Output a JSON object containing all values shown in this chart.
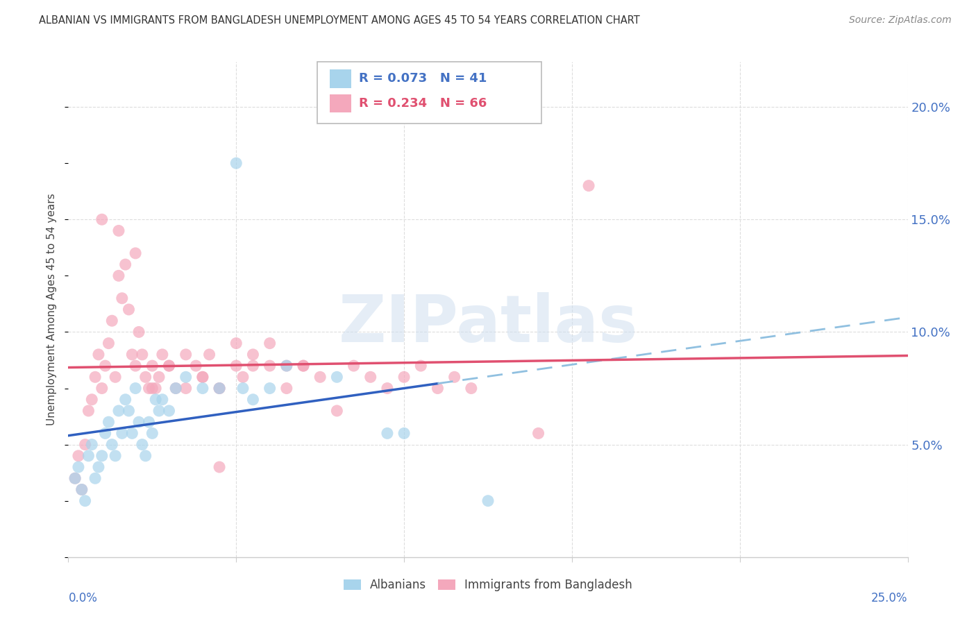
{
  "title": "ALBANIAN VS IMMIGRANTS FROM BANGLADESH UNEMPLOYMENT AMONG AGES 45 TO 54 YEARS CORRELATION CHART",
  "source": "Source: ZipAtlas.com",
  "ylabel": "Unemployment Among Ages 45 to 54 years",
  "xlim": [
    0.0,
    25.0
  ],
  "ylim": [
    0.0,
    22.0
  ],
  "legend1_R": "R = 0.073",
  "legend1_N": "N = 41",
  "legend2_R": "R = 0.234",
  "legend2_N": "N = 66",
  "legend_label1": "Albanians",
  "legend_label2": "Immigrants from Bangladesh",
  "color_albanian": "#a8d4ec",
  "color_bangladesh": "#f4a8bc",
  "watermark_text": "ZIPatlas",
  "alb_line_color": "#3060c0",
  "bang_line_color": "#e05070",
  "alb_dash_color": "#90c0e0",
  "albanian_x": [
    0.2,
    0.3,
    0.4,
    0.5,
    0.6,
    0.7,
    0.8,
    0.9,
    1.0,
    1.1,
    1.2,
    1.3,
    1.4,
    1.5,
    1.6,
    1.7,
    1.8,
    1.9,
    2.0,
    2.1,
    2.2,
    2.3,
    2.4,
    2.5,
    2.6,
    2.7,
    2.8,
    3.0,
    3.2,
    3.5,
    4.0,
    4.5,
    5.0,
    5.2,
    5.5,
    6.0,
    6.5,
    8.0,
    9.5,
    10.0,
    12.5
  ],
  "albanian_y": [
    3.5,
    4.0,
    3.0,
    2.5,
    4.5,
    5.0,
    3.5,
    4.0,
    4.5,
    5.5,
    6.0,
    5.0,
    4.5,
    6.5,
    5.5,
    7.0,
    6.5,
    5.5,
    7.5,
    6.0,
    5.0,
    4.5,
    6.0,
    5.5,
    7.0,
    6.5,
    7.0,
    6.5,
    7.5,
    8.0,
    7.5,
    7.5,
    17.5,
    7.5,
    7.0,
    7.5,
    8.5,
    8.0,
    5.5,
    5.5,
    2.5
  ],
  "bangladesh_x": [
    0.2,
    0.3,
    0.4,
    0.5,
    0.6,
    0.7,
    0.8,
    0.9,
    1.0,
    1.1,
    1.2,
    1.3,
    1.4,
    1.5,
    1.6,
    1.7,
    1.8,
    1.9,
    2.0,
    2.1,
    2.2,
    2.3,
    2.4,
    2.5,
    2.6,
    2.7,
    2.8,
    3.0,
    3.2,
    3.5,
    3.8,
    4.0,
    4.2,
    4.5,
    5.0,
    5.2,
    5.5,
    6.0,
    6.5,
    7.0,
    7.5,
    8.0,
    8.5,
    9.0,
    9.5,
    10.0,
    10.5,
    11.0,
    11.5,
    12.0,
    14.0,
    1.0,
    1.5,
    2.0,
    2.5,
    3.0,
    3.5,
    4.0,
    4.5,
    5.0,
    5.5,
    6.0,
    6.5,
    7.0,
    15.5,
    4.5
  ],
  "bangladesh_y": [
    3.5,
    4.5,
    3.0,
    5.0,
    6.5,
    7.0,
    8.0,
    9.0,
    7.5,
    8.5,
    9.5,
    10.5,
    8.0,
    12.5,
    11.5,
    13.0,
    11.0,
    9.0,
    8.5,
    10.0,
    9.0,
    8.0,
    7.5,
    8.5,
    7.5,
    8.0,
    9.0,
    8.5,
    7.5,
    9.0,
    8.5,
    8.0,
    9.0,
    7.5,
    8.5,
    8.0,
    9.0,
    8.5,
    7.5,
    8.5,
    8.0,
    6.5,
    8.5,
    8.0,
    7.5,
    8.0,
    8.5,
    7.5,
    8.0,
    7.5,
    5.5,
    15.0,
    14.5,
    13.5,
    7.5,
    8.5,
    7.5,
    8.0,
    7.5,
    9.5,
    8.5,
    9.5,
    8.5,
    8.5,
    16.5,
    4.0
  ]
}
